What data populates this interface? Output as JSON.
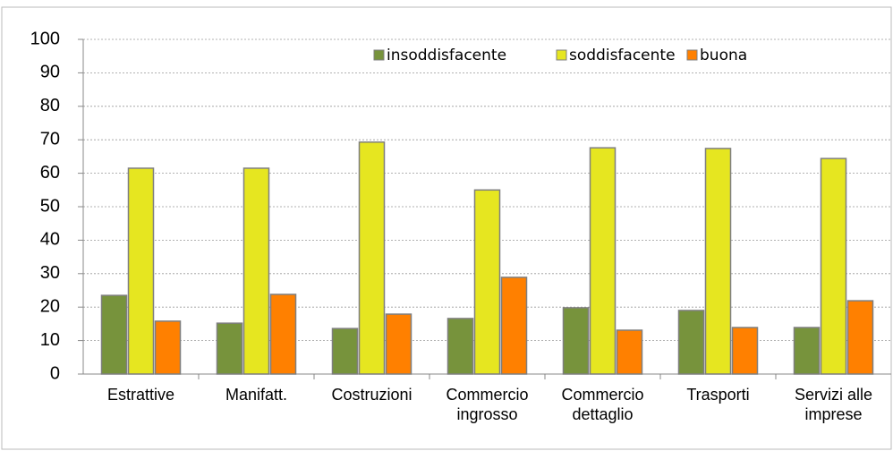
{
  "chart_data": {
    "type": "bar",
    "categories": [
      "Estrattive",
      "Manifatt.",
      "Costruzioni",
      "Commercio ingrosso",
      "Commercio dettaglio",
      "Trasporti",
      "Servizi alle imprese"
    ],
    "series": [
      {
        "name": "insoddisfacente",
        "color": "#77933c",
        "values": [
          23.5,
          15.2,
          13.6,
          16.6,
          19.8,
          19,
          13.9
        ]
      },
      {
        "name": "soddisfacente",
        "color": "#e6e620",
        "values": [
          61.5,
          61.5,
          69.3,
          55,
          67.6,
          67.4,
          64.4
        ]
      },
      {
        "name": "buona",
        "color": "#ff8000",
        "values": [
          15.8,
          23.8,
          17.9,
          28.9,
          13.1,
          13.9,
          21.9
        ]
      }
    ],
    "ylim": [
      0,
      100
    ],
    "yticks": [
      0,
      10,
      20,
      30,
      40,
      50,
      60,
      70,
      80,
      90,
      100
    ],
    "grid": true
  }
}
